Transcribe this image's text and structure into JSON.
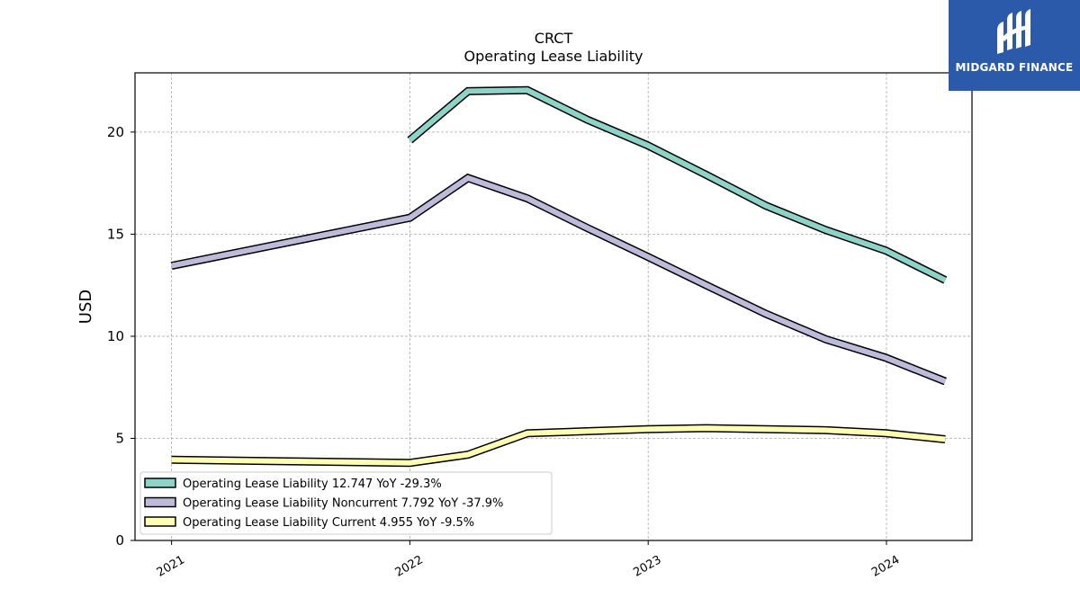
{
  "brand": {
    "name": "MIDGARD FINANCE",
    "background": "#2b5aaa"
  },
  "chart_data": {
    "type": "line",
    "title": "CRCT",
    "subtitle": "Operating Lease Liability",
    "xlabel": "",
    "ylabel": "USD",
    "ylim": [
      0,
      22.9
    ],
    "yticks": [
      0,
      5,
      10,
      15,
      20
    ],
    "xticks": [
      "2021",
      "2022",
      "2023",
      "2024"
    ],
    "xlim": [
      "2020-11-06",
      "2024-05-11"
    ],
    "grid": true,
    "legend_position": "lower-left",
    "series": [
      {
        "name": "Operating Lease Liability",
        "legend": "Operating Lease Liability  12.747 YoY -29.3%",
        "color": "#8dd3c7",
        "points": [
          [
            "2022-01-01",
            19.6
          ],
          [
            "2022-03-31",
            22.0
          ],
          [
            "2022-06-30",
            22.05
          ],
          [
            "2022-09-30",
            20.6
          ],
          [
            "2022-12-31",
            19.35
          ],
          [
            "2023-03-31",
            17.9
          ],
          [
            "2023-06-30",
            16.4
          ],
          [
            "2023-09-30",
            15.2
          ],
          [
            "2023-12-31",
            14.2
          ],
          [
            "2024-03-31",
            12.747
          ]
        ]
      },
      {
        "name": "Operating Lease Liability Noncurrent",
        "legend": "Operating Lease Liability Noncurrent  7.792 YoY -37.9%",
        "color": "#bebada",
        "points": [
          [
            "2021-01-01",
            13.45
          ],
          [
            "2022-01-01",
            15.8
          ],
          [
            "2022-03-31",
            17.75
          ],
          [
            "2022-06-30",
            16.75
          ],
          [
            "2022-09-30",
            15.3
          ],
          [
            "2022-12-31",
            13.9
          ],
          [
            "2023-03-31",
            12.5
          ],
          [
            "2023-06-30",
            11.1
          ],
          [
            "2023-09-30",
            9.85
          ],
          [
            "2023-12-31",
            8.95
          ],
          [
            "2024-03-31",
            7.792
          ]
        ]
      },
      {
        "name": "Operating Lease Liability Current",
        "legend": "Operating Lease Liability Current  4.955 YoY -9.5%",
        "color": "#ffffb3",
        "points": [
          [
            "2021-01-01",
            3.95
          ],
          [
            "2022-01-01",
            3.8
          ],
          [
            "2022-03-31",
            4.2
          ],
          [
            "2022-06-30",
            5.25
          ],
          [
            "2022-09-30",
            5.35
          ],
          [
            "2022-12-31",
            5.45
          ],
          [
            "2023-03-31",
            5.5
          ],
          [
            "2023-06-30",
            5.45
          ],
          [
            "2023-09-30",
            5.4
          ],
          [
            "2023-12-31",
            5.25
          ],
          [
            "2024-03-31",
            4.955
          ]
        ]
      }
    ]
  }
}
